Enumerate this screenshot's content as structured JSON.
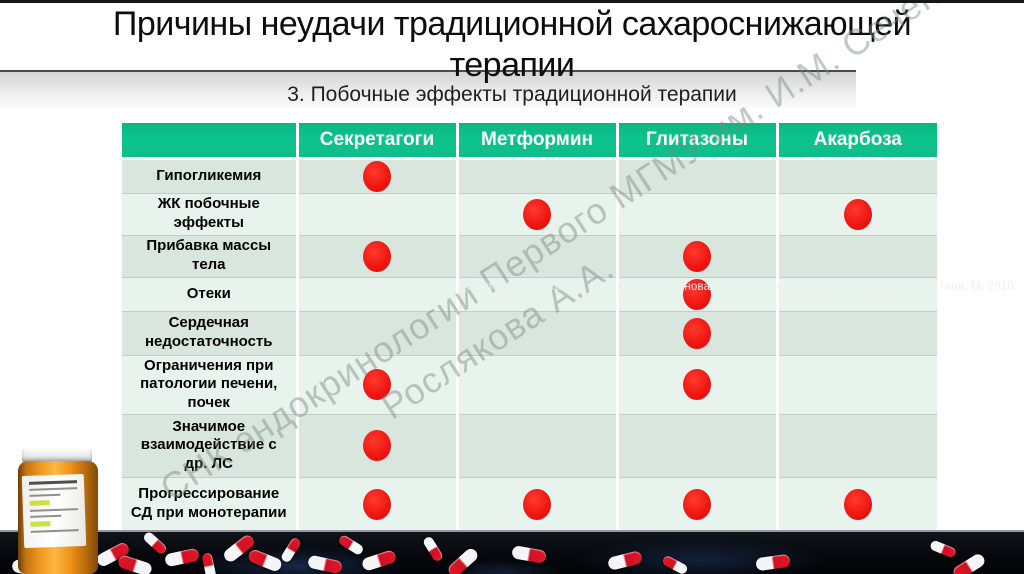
{
  "title": "Причины неудачи традиционной сахароснижающей\nтерапии",
  "subtitle": "3. Побочные эффекты традиционной терапии",
  "watermark": {
    "line1": "СНК эндокринологии Первого МГМУ им. И.М. Сеченова",
    "line2": "Рослякова А.А."
  },
  "table": {
    "columns": [
      "",
      "Секретагоги",
      "Метформин",
      "Глитазоны",
      "Акарбоза"
    ],
    "rows": [
      {
        "label": "Гипогликемия",
        "dots": [
          1,
          0,
          0,
          0
        ]
      },
      {
        "label": "ЖК побочные эффекты",
        "dots": [
          0,
          1,
          0,
          1
        ]
      },
      {
        "label": "Прибавка массы тела",
        "dots": [
          1,
          0,
          1,
          0
        ]
      },
      {
        "label": "Отеки",
        "dots": [
          0,
          0,
          1,
          0
        ]
      },
      {
        "label": "Сердечная недостаточность",
        "dots": [
          0,
          0,
          1,
          0
        ]
      },
      {
        "label": "Ограничения при патологии печени, почек",
        "dots": [
          1,
          0,
          1,
          0
        ]
      },
      {
        "label": "Значимое взаимодействие с др. ЛС",
        "dots": [
          1,
          0,
          0,
          0
        ]
      },
      {
        "label": "Прогрессирование СД при монотерапии",
        "dots": [
          1,
          1,
          1,
          1
        ]
      }
    ]
  },
  "footer": {
    "citation": "Дедов И.И., Шестакова М.В. Инкретины: новая веха в лечении сахарного диабета 2-го типа. М. 2010"
  },
  "colors": {
    "header_green": "#0dc48c",
    "dot_red": "#ee1411",
    "row_dark": "#d8e6de",
    "row_light": "#e7f3ec"
  }
}
